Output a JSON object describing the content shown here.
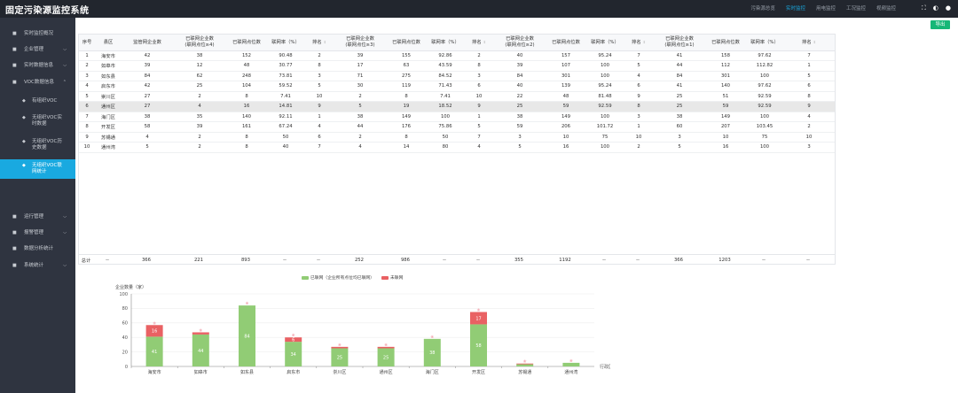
{
  "app_title": "固定污染源监控系统",
  "top_nav": [
    "污染源总览",
    "实时监控",
    "用电监控",
    "工况监控",
    "视频监控"
  ],
  "top_nav_active": 1,
  "colors": {
    "accent": "#19a9e0",
    "green": "#16b777",
    "bar_green": "#91cc75",
    "bar_red": "#e96163",
    "sidebar_bg": "#2f3440"
  },
  "sidebar": [
    {
      "label": "实时监控概况",
      "icon": "monitor-icon",
      "chevron": ""
    },
    {
      "label": "企业管理",
      "icon": "building-icon",
      "chevron": "⌵"
    },
    {
      "label": "实时数据信息",
      "icon": "chart-icon",
      "chevron": "⌵"
    },
    {
      "label": "VOC数据信息",
      "icon": "voc-icon",
      "chevron": "⌃",
      "open": true
    },
    {
      "label": "有组织VOC",
      "icon": "dot-icon",
      "chevron": "",
      "sub": true
    },
    {
      "label": "无组织VOC实时数据",
      "icon": "dot-icon",
      "chevron": "",
      "sub": true
    },
    {
      "label": "无组织VOC历史数据",
      "icon": "dot-icon",
      "chevron": "",
      "sub": true
    },
    {
      "label": "无组织VOC联网统计",
      "icon": "dot-icon",
      "chevron": "",
      "sub": true,
      "active": true
    },
    {
      "label": "运行管理",
      "icon": "gear-icon",
      "chevron": "⌵"
    },
    {
      "label": "报警管理",
      "icon": "bell-icon",
      "chevron": "⌵"
    },
    {
      "label": "数据分析统计",
      "icon": "stats-icon",
      "chevron": ""
    },
    {
      "label": "系统统计",
      "icon": "system-icon",
      "chevron": "⌵"
    }
  ],
  "export_label": "导出",
  "table": {
    "headers": [
      "序号",
      "县区",
      "监管网企业数",
      "已联网企业数\n(联网点位≥4)",
      "已联网点位数",
      "联网率（%）",
      "排名",
      "已联网企业数\n(联网点位≥3)",
      "已联网点位数",
      "联网率（%）",
      "排名",
      "已联网企业数\n(联网点位≥2)",
      "已联网点位数",
      "联网率（%）",
      "排名",
      "已联网企业数\n(联网点位≥1)",
      "已联网点位数",
      "联网率（%）",
      "排名"
    ],
    "sortable": [
      6,
      10,
      14,
      18
    ],
    "rows": [
      [
        "1",
        "海安市",
        "42",
        "38",
        "152",
        "90.48",
        "2",
        "39",
        "155",
        "92.86",
        "2",
        "40",
        "157",
        "95.24",
        "7",
        "41",
        "158",
        "97.62",
        "7"
      ],
      [
        "2",
        "如皋市",
        "39",
        "12",
        "48",
        "30.77",
        "8",
        "17",
        "63",
        "43.59",
        "8",
        "39",
        "107",
        "100",
        "5",
        "44",
        "112",
        "112.82",
        "1"
      ],
      [
        "3",
        "如东县",
        "84",
        "62",
        "248",
        "73.81",
        "3",
        "71",
        "275",
        "84.52",
        "3",
        "84",
        "301",
        "100",
        "4",
        "84",
        "301",
        "100",
        "5"
      ],
      [
        "4",
        "启东市",
        "42",
        "25",
        "104",
        "59.52",
        "5",
        "30",
        "119",
        "71.43",
        "6",
        "40",
        "139",
        "95.24",
        "6",
        "41",
        "140",
        "97.62",
        "6"
      ],
      [
        "5",
        "崇川区",
        "27",
        "2",
        "8",
        "7.41",
        "10",
        "2",
        "8",
        "7.41",
        "10",
        "22",
        "48",
        "81.48",
        "9",
        "25",
        "51",
        "92.59",
        "8"
      ],
      [
        "6",
        "通州区",
        "27",
        "4",
        "16",
        "14.81",
        "9",
        "5",
        "19",
        "18.52",
        "9",
        "25",
        "59",
        "92.59",
        "8",
        "25",
        "59",
        "92.59",
        "9"
      ],
      [
        "7",
        "海门区",
        "38",
        "35",
        "140",
        "92.11",
        "1",
        "38",
        "149",
        "100",
        "1",
        "38",
        "149",
        "100",
        "3",
        "38",
        "149",
        "100",
        "4"
      ],
      [
        "8",
        "开发区",
        "58",
        "39",
        "161",
        "67.24",
        "4",
        "44",
        "176",
        "75.86",
        "5",
        "59",
        "206",
        "101.72",
        "1",
        "60",
        "207",
        "103.45",
        "2"
      ],
      [
        "9",
        "苏锡通",
        "4",
        "2",
        "8",
        "50",
        "6",
        "2",
        "8",
        "50",
        "7",
        "3",
        "10",
        "75",
        "10",
        "3",
        "10",
        "75",
        "10"
      ],
      [
        "10",
        "通州湾",
        "5",
        "2",
        "8",
        "40",
        "7",
        "4",
        "14",
        "80",
        "4",
        "5",
        "16",
        "100",
        "2",
        "5",
        "16",
        "100",
        "3"
      ]
    ],
    "highlight_row": 5,
    "totals": [
      "总计",
      "--",
      "366",
      "221",
      "893",
      "--",
      "--",
      "252",
      "986",
      "--",
      "--",
      "355",
      "1192",
      "--",
      "--",
      "366",
      "1203",
      "--",
      "--"
    ]
  },
  "chart_data": {
    "type": "bar",
    "stacked": true,
    "ylabel": "企业数量（家）",
    "xlabel": "行政区",
    "ylim": [
      0,
      100
    ],
    "yticks": [
      0,
      20,
      40,
      60,
      80,
      100
    ],
    "categories": [
      "海安市",
      "如皋市",
      "如东县",
      "启东市",
      "崇川区",
      "通州区",
      "海门区",
      "开发区",
      "苏锡通",
      "通州湾"
    ],
    "series": [
      {
        "name": "已联网（企业所有点位均已联网）",
        "color": "#91cc75",
        "values": [
          41,
          44,
          84,
          34,
          25,
          25,
          38,
          58,
          3,
          5
        ],
        "labels": [
          "41",
          "44",
          "84",
          "34",
          "25",
          "25",
          "38",
          "58",
          "",
          ""
        ]
      },
      {
        "name": "未联网",
        "color": "#e96163",
        "values": [
          16,
          3,
          0,
          6,
          2,
          2,
          0,
          17,
          1,
          0
        ],
        "labels": [
          "16",
          "",
          "",
          "6",
          "",
          "",
          "",
          "17",
          "",
          ""
        ]
      }
    ],
    "grid": true,
    "legend": "top"
  }
}
